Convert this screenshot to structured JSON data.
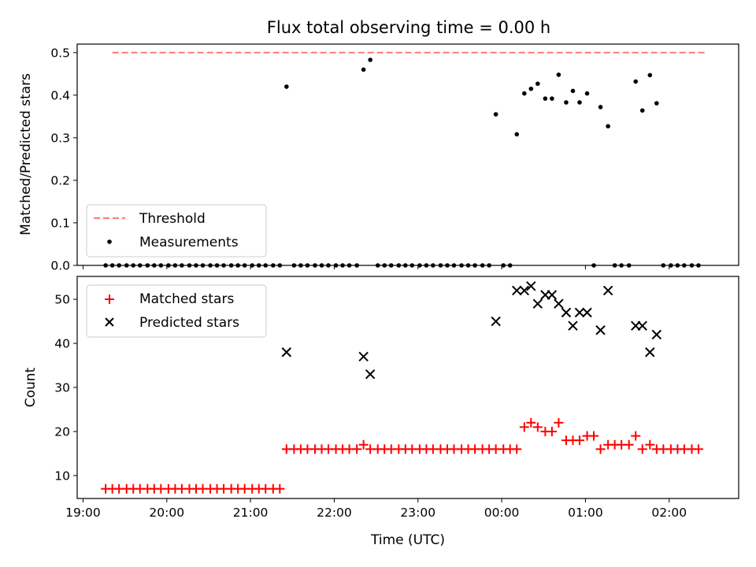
{
  "chart_data": {
    "title": "Flux total observing time = 0.00 h",
    "xlabel": "Time (UTC)",
    "x_unit": "hours (UTC)",
    "x_ticks": [
      {
        "label": "19:00",
        "value": 19
      },
      {
        "label": "20:00",
        "value": 20
      },
      {
        "label": "21:00",
        "value": 21
      },
      {
        "label": "22:00",
        "value": 22
      },
      {
        "label": "23:00",
        "value": 23
      },
      {
        "label": "00:00",
        "value": 24
      },
      {
        "label": "01:00",
        "value": 25
      },
      {
        "label": "02:00",
        "value": 26
      }
    ],
    "xlim": [
      18.93,
      26.83
    ],
    "panels": [
      {
        "type": "scatter",
        "ylabel": "Matched/Predicted stars",
        "ylim": [
          0,
          0.52
        ],
        "y_ticks": [
          0.0,
          0.1,
          0.2,
          0.3,
          0.4,
          0.5
        ],
        "y_tick_labels": [
          "0.0",
          "0.1",
          "0.2",
          "0.3",
          "0.4",
          "0.5"
        ],
        "legend": "bottom-left",
        "threshold": {
          "name": "Threshold",
          "value": 0.5,
          "x_range": [
            19.35,
            26.45
          ],
          "color": "#ff7f7f"
        },
        "series": [
          {
            "name": "Measurements",
            "marker": "dot",
            "color": "#000000",
            "points": [
              [
                19.27,
                0
              ],
              [
                19.35,
                0
              ],
              [
                19.43,
                0
              ],
              [
                19.52,
                0
              ],
              [
                19.6,
                0
              ],
              [
                19.68,
                0
              ],
              [
                19.77,
                0
              ],
              [
                19.85,
                0
              ],
              [
                19.93,
                0
              ],
              [
                20.02,
                0
              ],
              [
                20.1,
                0
              ],
              [
                20.18,
                0
              ],
              [
                20.27,
                0
              ],
              [
                20.35,
                0
              ],
              [
                20.43,
                0
              ],
              [
                20.52,
                0
              ],
              [
                20.6,
                0
              ],
              [
                20.68,
                0
              ],
              [
                20.77,
                0
              ],
              [
                20.85,
                0
              ],
              [
                20.93,
                0
              ],
              [
                21.02,
                0
              ],
              [
                21.1,
                0
              ],
              [
                21.18,
                0
              ],
              [
                21.27,
                0
              ],
              [
                21.35,
                0
              ],
              [
                21.43,
                0.42
              ],
              [
                21.52,
                0
              ],
              [
                21.6,
                0
              ],
              [
                21.68,
                0
              ],
              [
                21.77,
                0
              ],
              [
                21.85,
                0
              ],
              [
                21.93,
                0
              ],
              [
                22.02,
                0
              ],
              [
                22.1,
                0
              ],
              [
                22.18,
                0
              ],
              [
                22.27,
                0
              ],
              [
                22.35,
                0.46
              ],
              [
                22.43,
                0.483
              ],
              [
                22.52,
                0
              ],
              [
                22.6,
                0
              ],
              [
                22.68,
                0
              ],
              [
                22.77,
                0
              ],
              [
                22.85,
                0
              ],
              [
                22.93,
                0
              ],
              [
                23.02,
                0
              ],
              [
                23.1,
                0
              ],
              [
                23.18,
                0
              ],
              [
                23.27,
                0
              ],
              [
                23.35,
                0
              ],
              [
                23.43,
                0
              ],
              [
                23.52,
                0
              ],
              [
                23.6,
                0
              ],
              [
                23.68,
                0
              ],
              [
                23.77,
                0
              ],
              [
                23.85,
                0
              ],
              [
                23.93,
                0.355
              ],
              [
                24.02,
                0
              ],
              [
                24.1,
                0
              ],
              [
                24.18,
                0.308
              ],
              [
                24.27,
                0.404
              ],
              [
                24.35,
                0.415
              ],
              [
                24.43,
                0.427
              ],
              [
                24.52,
                0.392
              ],
              [
                24.6,
                0.392
              ],
              [
                24.68,
                0.448
              ],
              [
                24.77,
                0.383
              ],
              [
                24.85,
                0.41
              ],
              [
                24.93,
                0.383
              ],
              [
                25.02,
                0.404
              ],
              [
                25.1,
                0
              ],
              [
                25.18,
                0.372
              ],
              [
                25.27,
                0.327
              ],
              [
                25.35,
                0
              ],
              [
                25.43,
                0
              ],
              [
                25.52,
                0
              ],
              [
                25.6,
                0.432
              ],
              [
                25.68,
                0.364
              ],
              [
                25.77,
                0.447
              ],
              [
                25.85,
                0.381
              ],
              [
                25.93,
                0
              ],
              [
                26.02,
                0
              ],
              [
                26.1,
                0
              ],
              [
                26.18,
                0
              ],
              [
                26.27,
                0
              ],
              [
                26.35,
                0
              ]
            ]
          }
        ]
      },
      {
        "type": "scatter",
        "ylabel": "Count",
        "ylim": [
          4.8,
          55.2
        ],
        "y_ticks": [
          10,
          20,
          30,
          40,
          50
        ],
        "y_tick_labels": [
          "10",
          "20",
          "30",
          "40",
          "50"
        ],
        "legend": "top-left",
        "series": [
          {
            "name": "Matched stars",
            "marker": "plus",
            "color": "#ff0000",
            "points": [
              [
                19.27,
                7
              ],
              [
                19.35,
                7
              ],
              [
                19.43,
                7
              ],
              [
                19.52,
                7
              ],
              [
                19.6,
                7
              ],
              [
                19.68,
                7
              ],
              [
                19.77,
                7
              ],
              [
                19.85,
                7
              ],
              [
                19.93,
                7
              ],
              [
                20.02,
                7
              ],
              [
                20.1,
                7
              ],
              [
                20.18,
                7
              ],
              [
                20.27,
                7
              ],
              [
                20.35,
                7
              ],
              [
                20.43,
                7
              ],
              [
                20.52,
                7
              ],
              [
                20.6,
                7
              ],
              [
                20.68,
                7
              ],
              [
                20.77,
                7
              ],
              [
                20.85,
                7
              ],
              [
                20.93,
                7
              ],
              [
                21.02,
                7
              ],
              [
                21.1,
                7
              ],
              [
                21.18,
                7
              ],
              [
                21.27,
                7
              ],
              [
                21.35,
                7
              ],
              [
                21.43,
                16
              ],
              [
                21.52,
                16
              ],
              [
                21.6,
                16
              ],
              [
                21.68,
                16
              ],
              [
                21.77,
                16
              ],
              [
                21.85,
                16
              ],
              [
                21.93,
                16
              ],
              [
                22.02,
                16
              ],
              [
                22.1,
                16
              ],
              [
                22.18,
                16
              ],
              [
                22.27,
                16
              ],
              [
                22.35,
                17
              ],
              [
                22.43,
                16
              ],
              [
                22.52,
                16
              ],
              [
                22.6,
                16
              ],
              [
                22.68,
                16
              ],
              [
                22.77,
                16
              ],
              [
                22.85,
                16
              ],
              [
                22.93,
                16
              ],
              [
                23.02,
                16
              ],
              [
                23.1,
                16
              ],
              [
                23.18,
                16
              ],
              [
                23.27,
                16
              ],
              [
                23.35,
                16
              ],
              [
                23.43,
                16
              ],
              [
                23.52,
                16
              ],
              [
                23.6,
                16
              ],
              [
                23.68,
                16
              ],
              [
                23.77,
                16
              ],
              [
                23.85,
                16
              ],
              [
                23.93,
                16
              ],
              [
                24.02,
                16
              ],
              [
                24.1,
                16
              ],
              [
                24.18,
                16
              ],
              [
                24.27,
                21
              ],
              [
                24.35,
                22
              ],
              [
                24.43,
                21
              ],
              [
                24.52,
                20
              ],
              [
                24.6,
                20
              ],
              [
                24.68,
                22
              ],
              [
                24.77,
                18
              ],
              [
                24.85,
                18
              ],
              [
                24.93,
                18
              ],
              [
                25.02,
                19
              ],
              [
                25.1,
                19
              ],
              [
                25.18,
                16
              ],
              [
                25.27,
                17
              ],
              [
                25.35,
                17
              ],
              [
                25.43,
                17
              ],
              [
                25.52,
                17
              ],
              [
                25.6,
                19
              ],
              [
                25.68,
                16
              ],
              [
                25.77,
                17
              ],
              [
                25.85,
                16
              ],
              [
                25.93,
                16
              ],
              [
                26.02,
                16
              ],
              [
                26.1,
                16
              ],
              [
                26.18,
                16
              ],
              [
                26.27,
                16
              ],
              [
                26.35,
                16
              ]
            ]
          },
          {
            "name": "Predicted stars",
            "marker": "x",
            "color": "#000000",
            "points": [
              [
                21.43,
                38
              ],
              [
                22.35,
                37
              ],
              [
                22.43,
                33
              ],
              [
                23.93,
                45
              ],
              [
                24.18,
                52
              ],
              [
                24.27,
                52
              ],
              [
                24.35,
                53
              ],
              [
                24.43,
                49
              ],
              [
                24.52,
                51
              ],
              [
                24.6,
                51
              ],
              [
                24.68,
                49
              ],
              [
                24.77,
                47
              ],
              [
                24.85,
                44
              ],
              [
                24.93,
                47
              ],
              [
                25.02,
                47
              ],
              [
                25.18,
                43
              ],
              [
                25.27,
                52
              ],
              [
                25.6,
                44
              ],
              [
                25.68,
                44
              ],
              [
                25.77,
                38
              ],
              [
                25.85,
                42
              ]
            ]
          }
        ]
      }
    ]
  }
}
